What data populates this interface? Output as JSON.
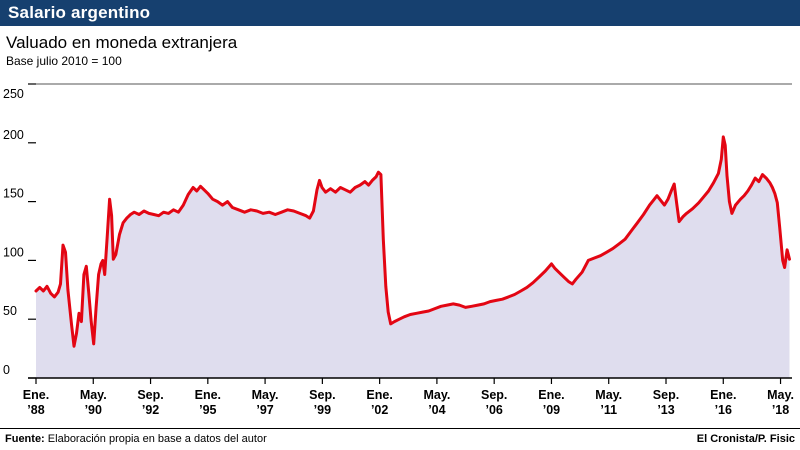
{
  "header": {
    "title": "Salario argentino",
    "subtitle": "Valuado en moneda extranjera",
    "note": "Base julio 2010 = 100"
  },
  "footer": {
    "source_label": "Fuente:",
    "source_text": "Elaboración propia en base a datos del autor",
    "credit": "El Cronista/P. Fisic"
  },
  "colors": {
    "header_bg": "#16406f",
    "line": "#e30613",
    "fill": "#dfddee",
    "axis": "#000000"
  },
  "chart_data": {
    "type": "area",
    "title": "Salario argentino",
    "subtitle": "Valuado en moneda extranjera",
    "base_note": "Base julio 2010 = 100",
    "xlabel": "",
    "ylabel": "",
    "ylim": [
      0,
      250
    ],
    "yticks": [
      0,
      50,
      100,
      150,
      200,
      250
    ],
    "xlim": [
      1988.0,
      2018.8
    ],
    "grid": false,
    "legend": "none",
    "line_color": "#e30613",
    "fill_color": "#dfddee",
    "xticks": [
      {
        "x": 1988.0,
        "line1": "Ene.",
        "line2": "’88"
      },
      {
        "x": 1990.333,
        "line1": "May.",
        "line2": "’90"
      },
      {
        "x": 1992.667,
        "line1": "Sep.",
        "line2": "’92"
      },
      {
        "x": 1995.0,
        "line1": "Ene.",
        "line2": "’95"
      },
      {
        "x": 1997.333,
        "line1": "May.",
        "line2": "’97"
      },
      {
        "x": 1999.667,
        "line1": "Sep.",
        "line2": "’99"
      },
      {
        "x": 2002.0,
        "line1": "Ene.",
        "line2": "’02"
      },
      {
        "x": 2004.333,
        "line1": "May.",
        "line2": "’04"
      },
      {
        "x": 2006.667,
        "line1": "Sep.",
        "line2": "’06"
      },
      {
        "x": 2009.0,
        "line1": "Ene.",
        "line2": "’09"
      },
      {
        "x": 2011.333,
        "line1": "May.",
        "line2": "’11"
      },
      {
        "x": 2013.667,
        "line1": "Sep.",
        "line2": "’13"
      },
      {
        "x": 2016.0,
        "line1": "Ene.",
        "line2": "’16"
      },
      {
        "x": 2018.333,
        "line1": "May.",
        "line2": "’18"
      }
    ],
    "series": [
      {
        "name": "Salario valuado en moneda extranjera (base julio 2010 = 100)",
        "points": [
          [
            1988.0,
            74
          ],
          [
            1988.15,
            77
          ],
          [
            1988.3,
            74
          ],
          [
            1988.45,
            78
          ],
          [
            1988.6,
            72
          ],
          [
            1988.75,
            69
          ],
          [
            1988.9,
            73
          ],
          [
            1989.0,
            80
          ],
          [
            1989.1,
            113
          ],
          [
            1989.2,
            107
          ],
          [
            1989.3,
            75
          ],
          [
            1989.45,
            45
          ],
          [
            1989.55,
            27
          ],
          [
            1989.65,
            38
          ],
          [
            1989.75,
            55
          ],
          [
            1989.85,
            48
          ],
          [
            1989.95,
            88
          ],
          [
            1990.05,
            95
          ],
          [
            1990.15,
            72
          ],
          [
            1990.25,
            48
          ],
          [
            1990.35,
            29
          ],
          [
            1990.45,
            60
          ],
          [
            1990.55,
            88
          ],
          [
            1990.65,
            97
          ],
          [
            1990.72,
            100
          ],
          [
            1990.8,
            88
          ],
          [
            1990.9,
            120
          ],
          [
            1991.0,
            152
          ],
          [
            1991.08,
            138
          ],
          [
            1991.15,
            101
          ],
          [
            1991.25,
            105
          ],
          [
            1991.4,
            122
          ],
          [
            1991.55,
            132
          ],
          [
            1991.7,
            136
          ],
          [
            1991.85,
            139
          ],
          [
            1992.0,
            141
          ],
          [
            1992.2,
            139
          ],
          [
            1992.4,
            142
          ],
          [
            1992.6,
            140
          ],
          [
            1992.8,
            139
          ],
          [
            1993.0,
            138
          ],
          [
            1993.2,
            141
          ],
          [
            1993.4,
            140
          ],
          [
            1993.6,
            143
          ],
          [
            1993.8,
            141
          ],
          [
            1994.0,
            147
          ],
          [
            1994.2,
            156
          ],
          [
            1994.4,
            162
          ],
          [
            1994.55,
            159
          ],
          [
            1994.7,
            163
          ],
          [
            1994.85,
            160
          ],
          [
            1995.0,
            157
          ],
          [
            1995.2,
            152
          ],
          [
            1995.4,
            150
          ],
          [
            1995.6,
            147
          ],
          [
            1995.8,
            150
          ],
          [
            1996.0,
            145
          ],
          [
            1996.25,
            143
          ],
          [
            1996.5,
            141
          ],
          [
            1996.75,
            143
          ],
          [
            1997.0,
            142
          ],
          [
            1997.25,
            140
          ],
          [
            1997.5,
            141
          ],
          [
            1997.75,
            139
          ],
          [
            1998.0,
            141
          ],
          [
            1998.25,
            143
          ],
          [
            1998.5,
            142
          ],
          [
            1998.75,
            140
          ],
          [
            1999.0,
            138
          ],
          [
            1999.15,
            136
          ],
          [
            1999.3,
            142
          ],
          [
            1999.45,
            160
          ],
          [
            1999.55,
            168
          ],
          [
            1999.65,
            162
          ],
          [
            1999.8,
            158
          ],
          [
            2000.0,
            161
          ],
          [
            2000.2,
            158
          ],
          [
            2000.4,
            162
          ],
          [
            2000.6,
            160
          ],
          [
            2000.8,
            158
          ],
          [
            2001.0,
            162
          ],
          [
            2001.2,
            164
          ],
          [
            2001.4,
            167
          ],
          [
            2001.55,
            164
          ],
          [
            2001.7,
            168
          ],
          [
            2001.85,
            171
          ],
          [
            2001.95,
            175
          ],
          [
            2002.05,
            173
          ],
          [
            2002.15,
            118
          ],
          [
            2002.25,
            78
          ],
          [
            2002.35,
            56
          ],
          [
            2002.45,
            46
          ],
          [
            2002.6,
            48
          ],
          [
            2002.8,
            50
          ],
          [
            2003.0,
            52
          ],
          [
            2003.25,
            54
          ],
          [
            2003.5,
            55
          ],
          [
            2003.75,
            56
          ],
          [
            2004.0,
            57
          ],
          [
            2004.25,
            59
          ],
          [
            2004.5,
            61
          ],
          [
            2004.75,
            62
          ],
          [
            2005.0,
            63
          ],
          [
            2005.25,
            62
          ],
          [
            2005.5,
            60
          ],
          [
            2005.75,
            61
          ],
          [
            2006.0,
            62
          ],
          [
            2006.25,
            63
          ],
          [
            2006.5,
            65
          ],
          [
            2006.75,
            66
          ],
          [
            2007.0,
            67
          ],
          [
            2007.25,
            69
          ],
          [
            2007.5,
            71
          ],
          [
            2007.75,
            74
          ],
          [
            2008.0,
            77
          ],
          [
            2008.25,
            81
          ],
          [
            2008.5,
            86
          ],
          [
            2008.75,
            91
          ],
          [
            2009.0,
            97
          ],
          [
            2009.15,
            93
          ],
          [
            2009.3,
            90
          ],
          [
            2009.5,
            86
          ],
          [
            2009.7,
            82
          ],
          [
            2009.85,
            80
          ],
          [
            2010.0,
            84
          ],
          [
            2010.25,
            90
          ],
          [
            2010.5,
            100
          ],
          [
            2010.75,
            102
          ],
          [
            2011.0,
            104
          ],
          [
            2011.25,
            107
          ],
          [
            2011.5,
            110
          ],
          [
            2011.75,
            114
          ],
          [
            2012.0,
            118
          ],
          [
            2012.25,
            125
          ],
          [
            2012.5,
            132
          ],
          [
            2012.75,
            139
          ],
          [
            2013.0,
            147
          ],
          [
            2013.15,
            151
          ],
          [
            2013.3,
            155
          ],
          [
            2013.45,
            151
          ],
          [
            2013.6,
            147
          ],
          [
            2013.75,
            152
          ],
          [
            2013.9,
            160
          ],
          [
            2014.0,
            165
          ],
          [
            2014.1,
            149
          ],
          [
            2014.2,
            133
          ],
          [
            2014.35,
            137
          ],
          [
            2014.5,
            140
          ],
          [
            2014.75,
            144
          ],
          [
            2015.0,
            149
          ],
          [
            2015.2,
            154
          ],
          [
            2015.4,
            159
          ],
          [
            2015.6,
            166
          ],
          [
            2015.8,
            174
          ],
          [
            2015.92,
            186
          ],
          [
            2016.0,
            205
          ],
          [
            2016.08,
            198
          ],
          [
            2016.15,
            172
          ],
          [
            2016.25,
            150
          ],
          [
            2016.35,
            140
          ],
          [
            2016.5,
            147
          ],
          [
            2016.7,
            152
          ],
          [
            2016.85,
            155
          ],
          [
            2017.0,
            159
          ],
          [
            2017.15,
            164
          ],
          [
            2017.3,
            170
          ],
          [
            2017.45,
            167
          ],
          [
            2017.6,
            173
          ],
          [
            2017.75,
            170
          ],
          [
            2017.9,
            166
          ],
          [
            2018.0,
            162
          ],
          [
            2018.1,
            157
          ],
          [
            2018.2,
            149
          ],
          [
            2018.3,
            128
          ],
          [
            2018.42,
            100
          ],
          [
            2018.5,
            94
          ],
          [
            2018.6,
            109
          ],
          [
            2018.7,
            101
          ]
        ]
      }
    ]
  }
}
